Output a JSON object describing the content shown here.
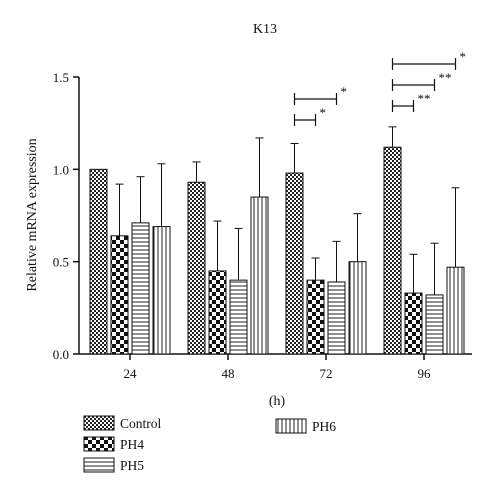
{
  "chart_data": {
    "type": "bar",
    "title": "K13",
    "xlabel": "(h)",
    "ylabel": "Relative mRNA expression",
    "ylim": [
      0,
      1.5
    ],
    "yticks": [
      "0.0",
      "0.5",
      "1.0",
      "1.5"
    ],
    "categories": [
      "24",
      "48",
      "72",
      "96"
    ],
    "grid": false,
    "legend_position": "bottom-left",
    "series": [
      {
        "name": "Control",
        "pattern": "checker-small",
        "values": [
          1.0,
          0.93,
          0.98,
          1.12
        ],
        "errors": [
          0,
          0.11,
          0.16,
          0.11
        ]
      },
      {
        "name": "PH4",
        "pattern": "checker-large",
        "values": [
          0.64,
          0.45,
          0.4,
          0.33
        ],
        "errors": [
          0.28,
          0.27,
          0.12,
          0.21
        ]
      },
      {
        "name": "PH5",
        "pattern": "horizontal-lines",
        "values": [
          0.71,
          0.4,
          0.39,
          0.32
        ],
        "errors": [
          0.25,
          0.28,
          0.22,
          0.28
        ]
      },
      {
        "name": "PH6",
        "pattern": "vertical-lines",
        "values": [
          0.69,
          0.85,
          0.5,
          0.47
        ],
        "errors": [
          0.34,
          0.32,
          0.26,
          0.43
        ]
      }
    ],
    "significance": [
      {
        "category": "72",
        "from": "Control",
        "to": "PH4",
        "label": "*"
      },
      {
        "category": "72",
        "from": "Control",
        "to": "PH5",
        "label": "*"
      },
      {
        "category": "96",
        "from": "Control",
        "to": "PH4",
        "label": "**"
      },
      {
        "category": "96",
        "from": "Control",
        "to": "PH5",
        "label": "**"
      },
      {
        "category": "96",
        "from": "Control",
        "to": "PH6",
        "label": "*"
      }
    ]
  }
}
